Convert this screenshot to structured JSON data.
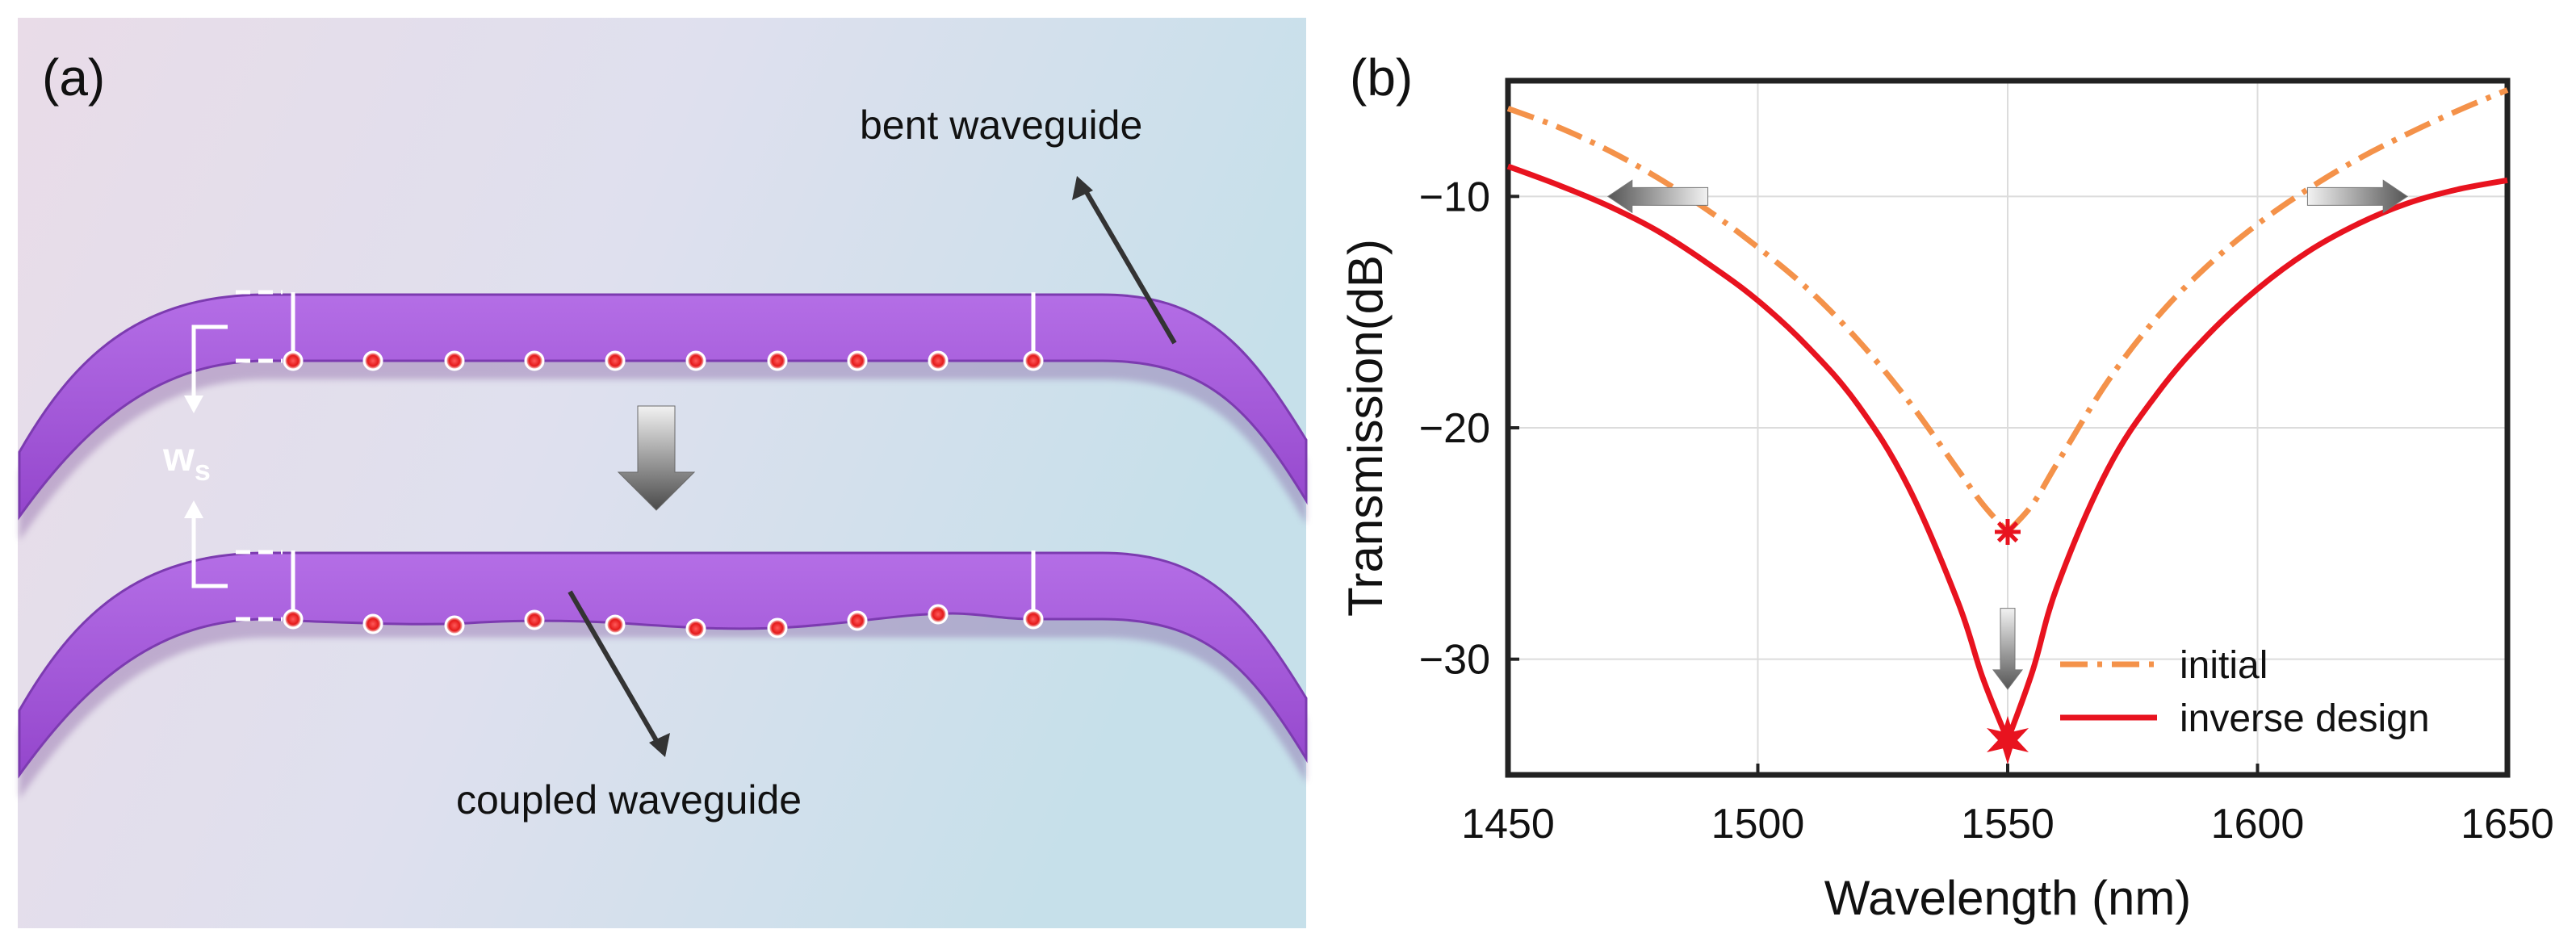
{
  "panel_a": {
    "label": "(a)",
    "bent_label": "bent waveguide",
    "coupled_label": "coupled waveguide",
    "ws_main": "w",
    "ws_sub": "s"
  },
  "panel_b": {
    "label": "(b)"
  },
  "colors": {
    "waveguide": "#a257d6",
    "waveguide_edge": "#7c3bb0",
    "initial": "#f4924a",
    "inverse": "#e8131f",
    "background_left": "#e7dde9",
    "background_right": "#c9e1ea"
  },
  "chart_data": {
    "type": "line",
    "title": "",
    "xlabel": "Wavelength (nm)",
    "ylabel": "Transmission(dB)",
    "xlim": [
      1450,
      1650
    ],
    "ylim": [
      -35,
      -5
    ],
    "xticks": [
      1450,
      1500,
      1550,
      1600,
      1650
    ],
    "yticks": [
      -10,
      -20,
      -30
    ],
    "xtick_labels": [
      "1450",
      "1500",
      "1550",
      "1600",
      "1650"
    ],
    "ytick_labels": [
      "−10",
      "−20",
      "−30"
    ],
    "grid": true,
    "legend_position": "bottom-right",
    "series": [
      {
        "name": "initial",
        "style": "dash-dot",
        "x": [
          1450,
          1460,
          1470,
          1480,
          1490,
          1500,
          1510,
          1520,
          1530,
          1540,
          1545,
          1550,
          1555,
          1560,
          1570,
          1580,
          1590,
          1600,
          1610,
          1620,
          1630,
          1640,
          1650
        ],
        "values": [
          -6.2,
          -7.0,
          -8.0,
          -9.2,
          -10.6,
          -12.2,
          -14.0,
          -16.2,
          -18.8,
          -21.8,
          -23.3,
          -24.5,
          -23.3,
          -21.5,
          -18.0,
          -15.2,
          -13.0,
          -11.2,
          -9.7,
          -8.4,
          -7.3,
          -6.3,
          -5.4
        ]
      },
      {
        "name": "inverse design",
        "style": "solid",
        "x": [
          1450,
          1460,
          1470,
          1480,
          1490,
          1500,
          1510,
          1520,
          1530,
          1540,
          1545,
          1550,
          1555,
          1560,
          1570,
          1580,
          1590,
          1600,
          1610,
          1620,
          1630,
          1640,
          1650
        ],
        "values": [
          -8.7,
          -9.5,
          -10.4,
          -11.5,
          -12.9,
          -14.5,
          -16.5,
          -19.0,
          -22.5,
          -27.5,
          -30.8,
          -33.5,
          -30.5,
          -26.8,
          -21.8,
          -18.5,
          -16.0,
          -14.0,
          -12.4,
          -11.2,
          -10.3,
          -9.7,
          -9.3
        ]
      }
    ],
    "markers": [
      {
        "x": 1550,
        "y": -24.5,
        "shape": "asterisk",
        "series": "initial"
      },
      {
        "x": 1550,
        "y": -33.5,
        "shape": "star",
        "series": "inverse design"
      }
    ]
  }
}
